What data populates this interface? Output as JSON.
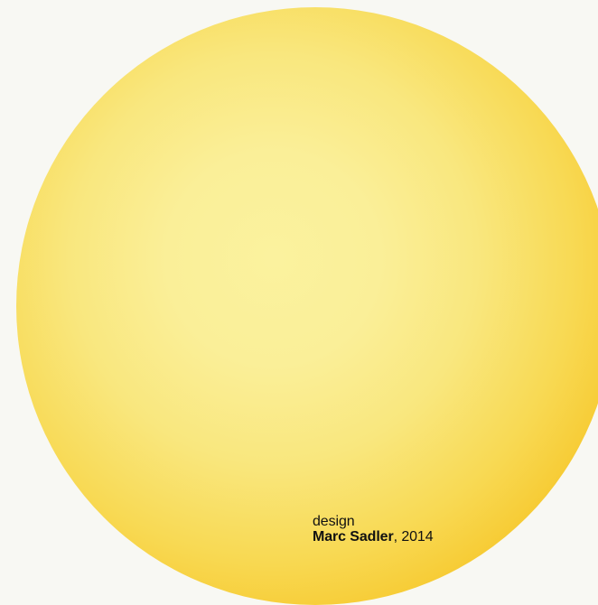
{
  "credit": {
    "label": "design",
    "designer": "Marc Sadler",
    "year_text": ", 2014"
  },
  "colors": {
    "background": "#f8f8f3",
    "sun_center": "#fbf29e",
    "sun_edge": "#f4b800",
    "text": "#111111"
  }
}
